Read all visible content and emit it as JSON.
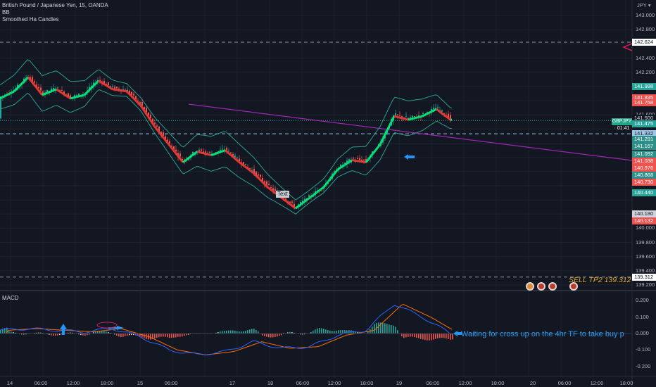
{
  "legend": {
    "symbol_line": "British Pound / Japanese Yen, 15, OANDA",
    "ind1": "BB",
    "ind2": "Smoothed Ha Candles"
  },
  "macd_label": "MACD",
  "currency": "JPY ▾",
  "price_axis": {
    "ticks": [
      "143.000",
      "142.800",
      "142.400",
      "142.200",
      "141.600",
      "140.000",
      "139.800",
      "139.600",
      "139.400",
      "139.200"
    ],
    "min": 139.2,
    "max": 143.1
  },
  "badges": [
    {
      "text": "142.624",
      "price": 142.624,
      "bg": "#ffffff",
      "fg": "#131722"
    },
    {
      "text": "141.998",
      "price": 141.998,
      "bg": "#26a69a",
      "fg": "#ffffff"
    },
    {
      "text": "141.835",
      "price": 141.835,
      "bg": "#ef5350",
      "fg": "#ffffff"
    },
    {
      "text": "141.768",
      "price": 141.768,
      "bg": "#ef5350",
      "fg": "#ffffff"
    },
    {
      "text": "141.500",
      "price": 141.55,
      "bg": "#131722",
      "fg": "#d1d4dc"
    },
    {
      "text": "141.475",
      "price": 141.475,
      "bg": "#26a69a",
      "fg": "#ffffff"
    },
    {
      "text": "141.332",
      "price": 141.332,
      "bg": "#9fc6e6",
      "fg": "#131722"
    },
    {
      "text": "141.291",
      "price": 141.255,
      "bg": "#2d8f87",
      "fg": "#ffffff"
    },
    {
      "text": "141.167",
      "price": 141.153,
      "bg": "#2d8f87",
      "fg": "#ffffff"
    },
    {
      "text": "141.092",
      "price": 141.05,
      "bg": "#2d8f87",
      "fg": "#ffffff"
    },
    {
      "text": "141.038",
      "price": 140.95,
      "bg": "#ef5350",
      "fg": "#ffffff"
    },
    {
      "text": "140.976",
      "price": 140.85,
      "bg": "#ef5350",
      "fg": "#ffffff"
    },
    {
      "text": "140.868",
      "price": 140.75,
      "bg": "#2d8f87",
      "fg": "#ffffff"
    },
    {
      "text": "140.730",
      "price": 140.65,
      "bg": "#ef5350",
      "fg": "#ffffff"
    },
    {
      "text": "140.440",
      "price": 140.5,
      "bg": "#26a69a",
      "fg": "#ffffff"
    },
    {
      "text": "140.180",
      "price": 140.2,
      "bg": "#cfd3db",
      "fg": "#131722"
    },
    {
      "text": "140.132",
      "price": 140.1,
      "bg": "#ef5350",
      "fg": "#ffffff"
    },
    {
      "text": "139.312",
      "price": 139.312,
      "bg": "#ffffff",
      "fg": "#131722"
    }
  ],
  "ticker": "GBPJPY · 01:41",
  "macd_axis": [
    "0.200",
    "0.100",
    "0.000",
    "-0.100",
    "-0.200"
  ],
  "x_axis": [
    "14",
    "06:00",
    "12:00",
    "18:00",
    "15",
    "06:00",
    "17",
    "18",
    "06:00",
    "12:00",
    "18:00",
    "19",
    "06:00",
    "12:00",
    "18:00",
    "20",
    "06:00",
    "12:00",
    "18:00"
  ],
  "sell_label": "SELL TP2 139.312",
  "note": "Waiting for cross up on the 4hr TF to take buy p",
  "text_label": "Text",
  "levels": {
    "dashed_top": 142.624,
    "dashed_mid": 141.332,
    "dashed_bottom": 139.312
  },
  "colors": {
    "bull": "#26a69a",
    "bear": "#ef5350",
    "ha_up": "#00e676",
    "ha_down": "#e53935",
    "bb": "#2a9d8f",
    "trend": "#9c27b0",
    "macd": "#2962ff",
    "signal": "#ff6d00"
  },
  "chart_data": {
    "type": "line",
    "title": "British Pound / Japanese Yen, 15, OANDA",
    "price_path": [
      [
        0,
        141.85
      ],
      [
        20,
        141.95
      ],
      [
        40,
        142.15
      ],
      [
        60,
        141.9
      ],
      [
        80,
        141.98
      ],
      [
        100,
        141.85
      ],
      [
        120,
        141.9
      ],
      [
        140,
        142.1
      ],
      [
        160,
        141.98
      ],
      [
        180,
        141.95
      ],
      [
        200,
        141.75
      ],
      [
        220,
        141.45
      ],
      [
        240,
        141.2
      ],
      [
        260,
        140.95
      ],
      [
        280,
        141.1
      ],
      [
        300,
        141.05
      ],
      [
        320,
        141.12
      ],
      [
        340,
        140.95
      ],
      [
        360,
        140.8
      ],
      [
        380,
        140.6
      ],
      [
        400,
        140.45
      ],
      [
        420,
        140.3
      ],
      [
        440,
        140.45
      ],
      [
        460,
        140.6
      ],
      [
        480,
        140.85
      ],
      [
        500,
        140.98
      ],
      [
        520,
        140.95
      ],
      [
        540,
        141.2
      ],
      [
        560,
        141.6
      ],
      [
        580,
        141.55
      ],
      [
        600,
        141.6
      ],
      [
        620,
        141.7
      ],
      [
        640,
        141.55
      ]
    ],
    "macd_series": [
      [
        0,
        0.02
      ],
      [
        40,
        0.03
      ],
      [
        80,
        0.02
      ],
      [
        120,
        0.01
      ],
      [
        160,
        0.03
      ],
      [
        200,
        -0.02
      ],
      [
        240,
        -0.1
      ],
      [
        280,
        -0.13
      ],
      [
        320,
        -0.11
      ],
      [
        360,
        -0.05
      ],
      [
        400,
        -0.09
      ],
      [
        440,
        -0.08
      ],
      [
        480,
        -0.01
      ],
      [
        520,
        0.02
      ],
      [
        560,
        0.18
      ],
      [
        600,
        0.1
      ],
      [
        640,
        0.0
      ]
    ]
  }
}
